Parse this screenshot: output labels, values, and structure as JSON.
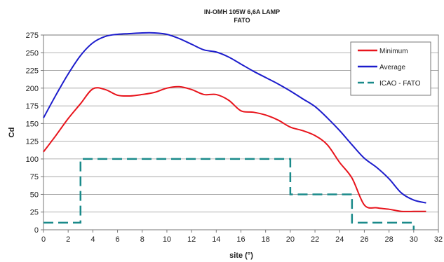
{
  "chart_data": {
    "type": "line",
    "title": "IN-OMH 105W 6,6A LAMP",
    "subtitle": "FATO",
    "xlabel": "site (°)",
    "ylabel": "Cd",
    "xlim": [
      0,
      32
    ],
    "ylim": [
      0,
      275
    ],
    "xticks": [
      0,
      2,
      4,
      6,
      8,
      10,
      12,
      14,
      16,
      18,
      20,
      22,
      24,
      26,
      28,
      30,
      32
    ],
    "yticks": [
      0,
      25,
      50,
      75,
      100,
      125,
      150,
      175,
      200,
      225,
      250,
      275
    ],
    "grid": true,
    "legend_position": "top-right",
    "series": [
      {
        "name": "Minimum",
        "color": "#e8141c",
        "style": "solid",
        "x": [
          0,
          1,
          2,
          3,
          4,
          5,
          6,
          7,
          8,
          9,
          10,
          11,
          12,
          13,
          14,
          15,
          16,
          17,
          18,
          19,
          20,
          21,
          22,
          23,
          24,
          25,
          26,
          27,
          28,
          29,
          30,
          31
        ],
        "y": [
          110,
          133,
          157,
          178,
          199,
          198,
          190,
          189,
          191,
          194,
          200,
          202,
          198,
          191,
          191,
          183,
          168,
          166,
          162,
          155,
          145,
          140,
          133,
          120,
          95,
          73,
          35,
          31,
          29,
          26,
          26,
          26
        ]
      },
      {
        "name": "Average",
        "color": "#1c1ccc",
        "style": "solid",
        "x": [
          0,
          1,
          2,
          3,
          4,
          5,
          6,
          7,
          8,
          9,
          10,
          11,
          12,
          13,
          14,
          15,
          16,
          17,
          18,
          19,
          20,
          21,
          22,
          23,
          24,
          25,
          26,
          27,
          28,
          29,
          30,
          31
        ],
        "y": [
          158,
          190,
          220,
          246,
          264,
          273,
          276,
          277,
          278,
          278,
          276,
          270,
          262,
          254,
          251,
          244,
          234,
          224,
          215,
          206,
          196,
          185,
          174,
          158,
          140,
          120,
          101,
          88,
          72,
          52,
          42,
          38
        ]
      },
      {
        "name": "ICAO - FATO",
        "color": "#1a8a8a",
        "style": "dashed",
        "x": [
          0,
          3,
          3,
          20,
          20,
          25,
          25,
          30,
          30
        ],
        "y": [
          10,
          10,
          100,
          100,
          50,
          50,
          10,
          10,
          0
        ]
      }
    ]
  }
}
